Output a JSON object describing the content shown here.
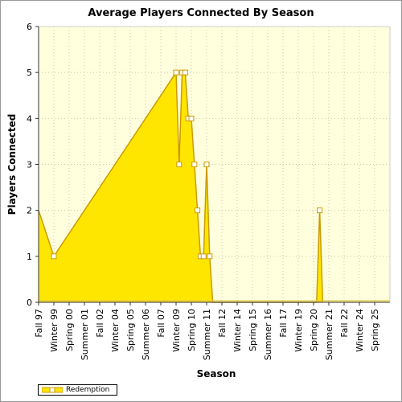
{
  "chart_data": {
    "type": "area",
    "title": "Average Players Connected By Season",
    "xlabel": "Season",
    "ylabel": "Players Connected",
    "ylim": [
      0,
      6
    ],
    "yticks": [
      0,
      1,
      2,
      3,
      4,
      5,
      6
    ],
    "grid": true,
    "legend_position": "bottom-left",
    "x_tick_labels": [
      "Fall 97",
      "Winter 99",
      "Spring 00",
      "Summer 01",
      "Fall 02",
      "Winter 04",
      "Spring 05",
      "Summer 06",
      "Fall 07",
      "Winter 09",
      "Spring 10",
      "Summer 11",
      "Fall 12",
      "Winter 14",
      "Spring 15",
      "Summer 16",
      "Fall 17",
      "Winter 19",
      "Spring 20",
      "Summer 21",
      "Fall 22",
      "Winter 24",
      "Spring 25"
    ],
    "season_range": [
      "Fall 97",
      "Summer 26"
    ],
    "series": [
      {
        "name": "Redemption",
        "fill_color": "#FFE600",
        "line_color": "#CC9A00",
        "points": [
          {
            "x": "Fall 97",
            "y": 2,
            "marker": false
          },
          {
            "x": "Winter 99",
            "y": 1,
            "marker": true
          },
          {
            "x": "Winter 09",
            "y": 5,
            "marker": true
          },
          {
            "x": "Spring 09",
            "y": 3,
            "marker": true
          },
          {
            "x": "Summer 09",
            "y": 5,
            "marker": true
          },
          {
            "x": "Fall 09",
            "y": 5,
            "marker": true
          },
          {
            "x": "Winter 10",
            "y": 4,
            "marker": true
          },
          {
            "x": "Spring 10",
            "y": 4,
            "marker": true
          },
          {
            "x": "Summer 10",
            "y": 3,
            "marker": true
          },
          {
            "x": "Fall 10",
            "y": 2,
            "marker": true
          },
          {
            "x": "Winter 11",
            "y": 1,
            "marker": true
          },
          {
            "x": "Spring 11",
            "y": 1,
            "marker": true
          },
          {
            "x": "Summer 11",
            "y": 3,
            "marker": true
          },
          {
            "x": "Fall 11",
            "y": 1,
            "marker": true
          },
          {
            "x": "Winter 12",
            "y": 0,
            "marker": false
          },
          {
            "x": "Summer 20",
            "y": 0,
            "marker": false
          },
          {
            "x": "Fall 20",
            "y": 2,
            "marker": true
          },
          {
            "x": "Winter 21",
            "y": 0,
            "marker": false
          }
        ]
      }
    ]
  },
  "colors": {
    "plot_background": "#FFFFDD",
    "grid": "#C8C8B4",
    "area_fill": "#FFE600",
    "area_line": "#CC9A00",
    "baseline_fill": "#E6C84A"
  }
}
